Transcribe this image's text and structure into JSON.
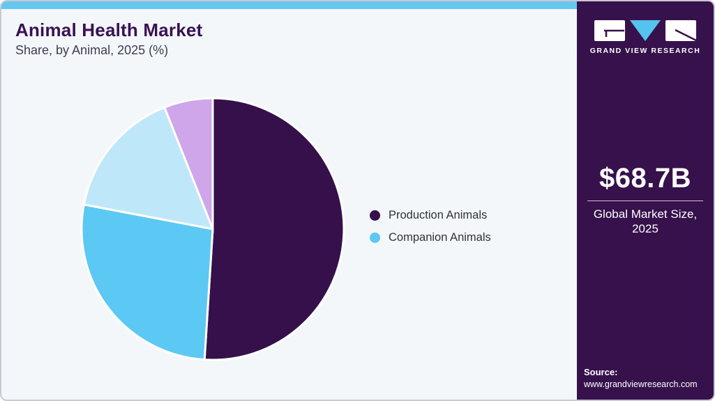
{
  "header": {
    "title": "Animal Health Market",
    "subtitle": "Share, by Animal, 2025 (%)"
  },
  "sidebar": {
    "logo_wordmark": "GRAND VIEW RESEARCH",
    "market_size_value": "$68.7B",
    "market_size_label_line1": "Global Market Size,",
    "market_size_label_line2": "2025",
    "source_label": "Source:",
    "source_url": "www.grandviewresearch.com"
  },
  "legend": [
    {
      "label": "Production Animals",
      "color": "#36104a"
    },
    {
      "label": "Companion Animals",
      "color": "#5cc8f4"
    }
  ],
  "chart_data": {
    "type": "pie",
    "title": "Animal Health Market",
    "subtitle": "Share, by Animal, 2025 (%)",
    "unit": "%",
    "start_angle_deg": 0,
    "direction": "clockwise",
    "legend_position": "right",
    "slices": [
      {
        "label": "Production Animals",
        "value": 51,
        "color": "#36104a"
      },
      {
        "label": "Companion Animals",
        "value": 27,
        "color": "#5cc8f4"
      },
      {
        "label": "",
        "value": 16,
        "color": "#bfe7fa"
      },
      {
        "label": "",
        "value": 6,
        "color": "#cfa6e9"
      }
    ]
  },
  "colors": {
    "accent_bar": "#63c9f0",
    "card_bg": "#f3f7fa",
    "card_border": "#c9c7d2",
    "sidebar_bg": "#36114b",
    "title_text": "#3a1153",
    "subtitle_text": "#403c50",
    "legend_text": "#33303f",
    "logo_triangle": "#56c2ee",
    "logo_mark_stroke": "#36114b"
  }
}
